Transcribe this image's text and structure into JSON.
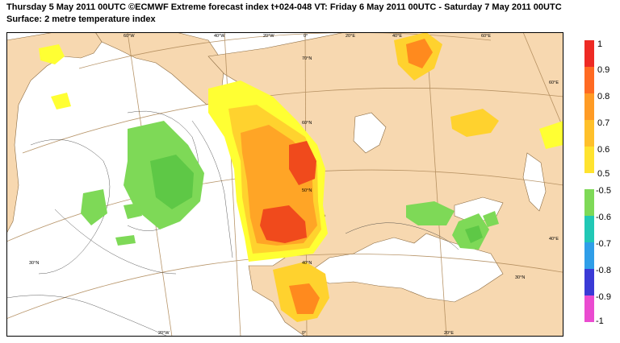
{
  "header": {
    "line1": "Thursday 5 May 2011 00UTC ©ECMWF Extreme forecast index t+024-048 VT: Friday 6 May 2011 00UTC - Saturday 7 May 2011 00UTC",
    "line2": "Surface: 2 metre temperature index"
  },
  "map": {
    "grid_labels": [
      "60°W",
      "40°W",
      "20°W",
      "0°",
      "20°E",
      "40°E",
      "60°E",
      "70°N",
      "60°N",
      "50°N",
      "40°N",
      "30°N",
      "60°E",
      "40°E",
      "30°N",
      "20°W",
      "0°",
      "20°E"
    ],
    "colors": {
      "land": "#f7d8b0",
      "sea": "#ffffff",
      "yellow": "#ffff33",
      "light_orange": "#ffd22e",
      "orange": "#ffa526",
      "dark_orange": "#ff8a1e",
      "red": "#f04a1c",
      "green": "#7ed957",
      "mid_green": "#5ec846"
    }
  },
  "legend": {
    "warm_ticks": [
      "1",
      "0.9",
      "0.8",
      "0.7",
      "0.6",
      "0.5"
    ],
    "cold_ticks": [
      "-0.5",
      "-0.6",
      "-0.7",
      "-0.8",
      "-0.9",
      "-1"
    ],
    "warm_colors": [
      "#ee2a24",
      "#ff6a22",
      "#ff9b25",
      "#ffc02a",
      "#ffe32f"
    ],
    "cold_colors": [
      "#7ed957",
      "#21c8b5",
      "#2f9ee8",
      "#3a3ad6",
      "#ea4bd0"
    ]
  }
}
